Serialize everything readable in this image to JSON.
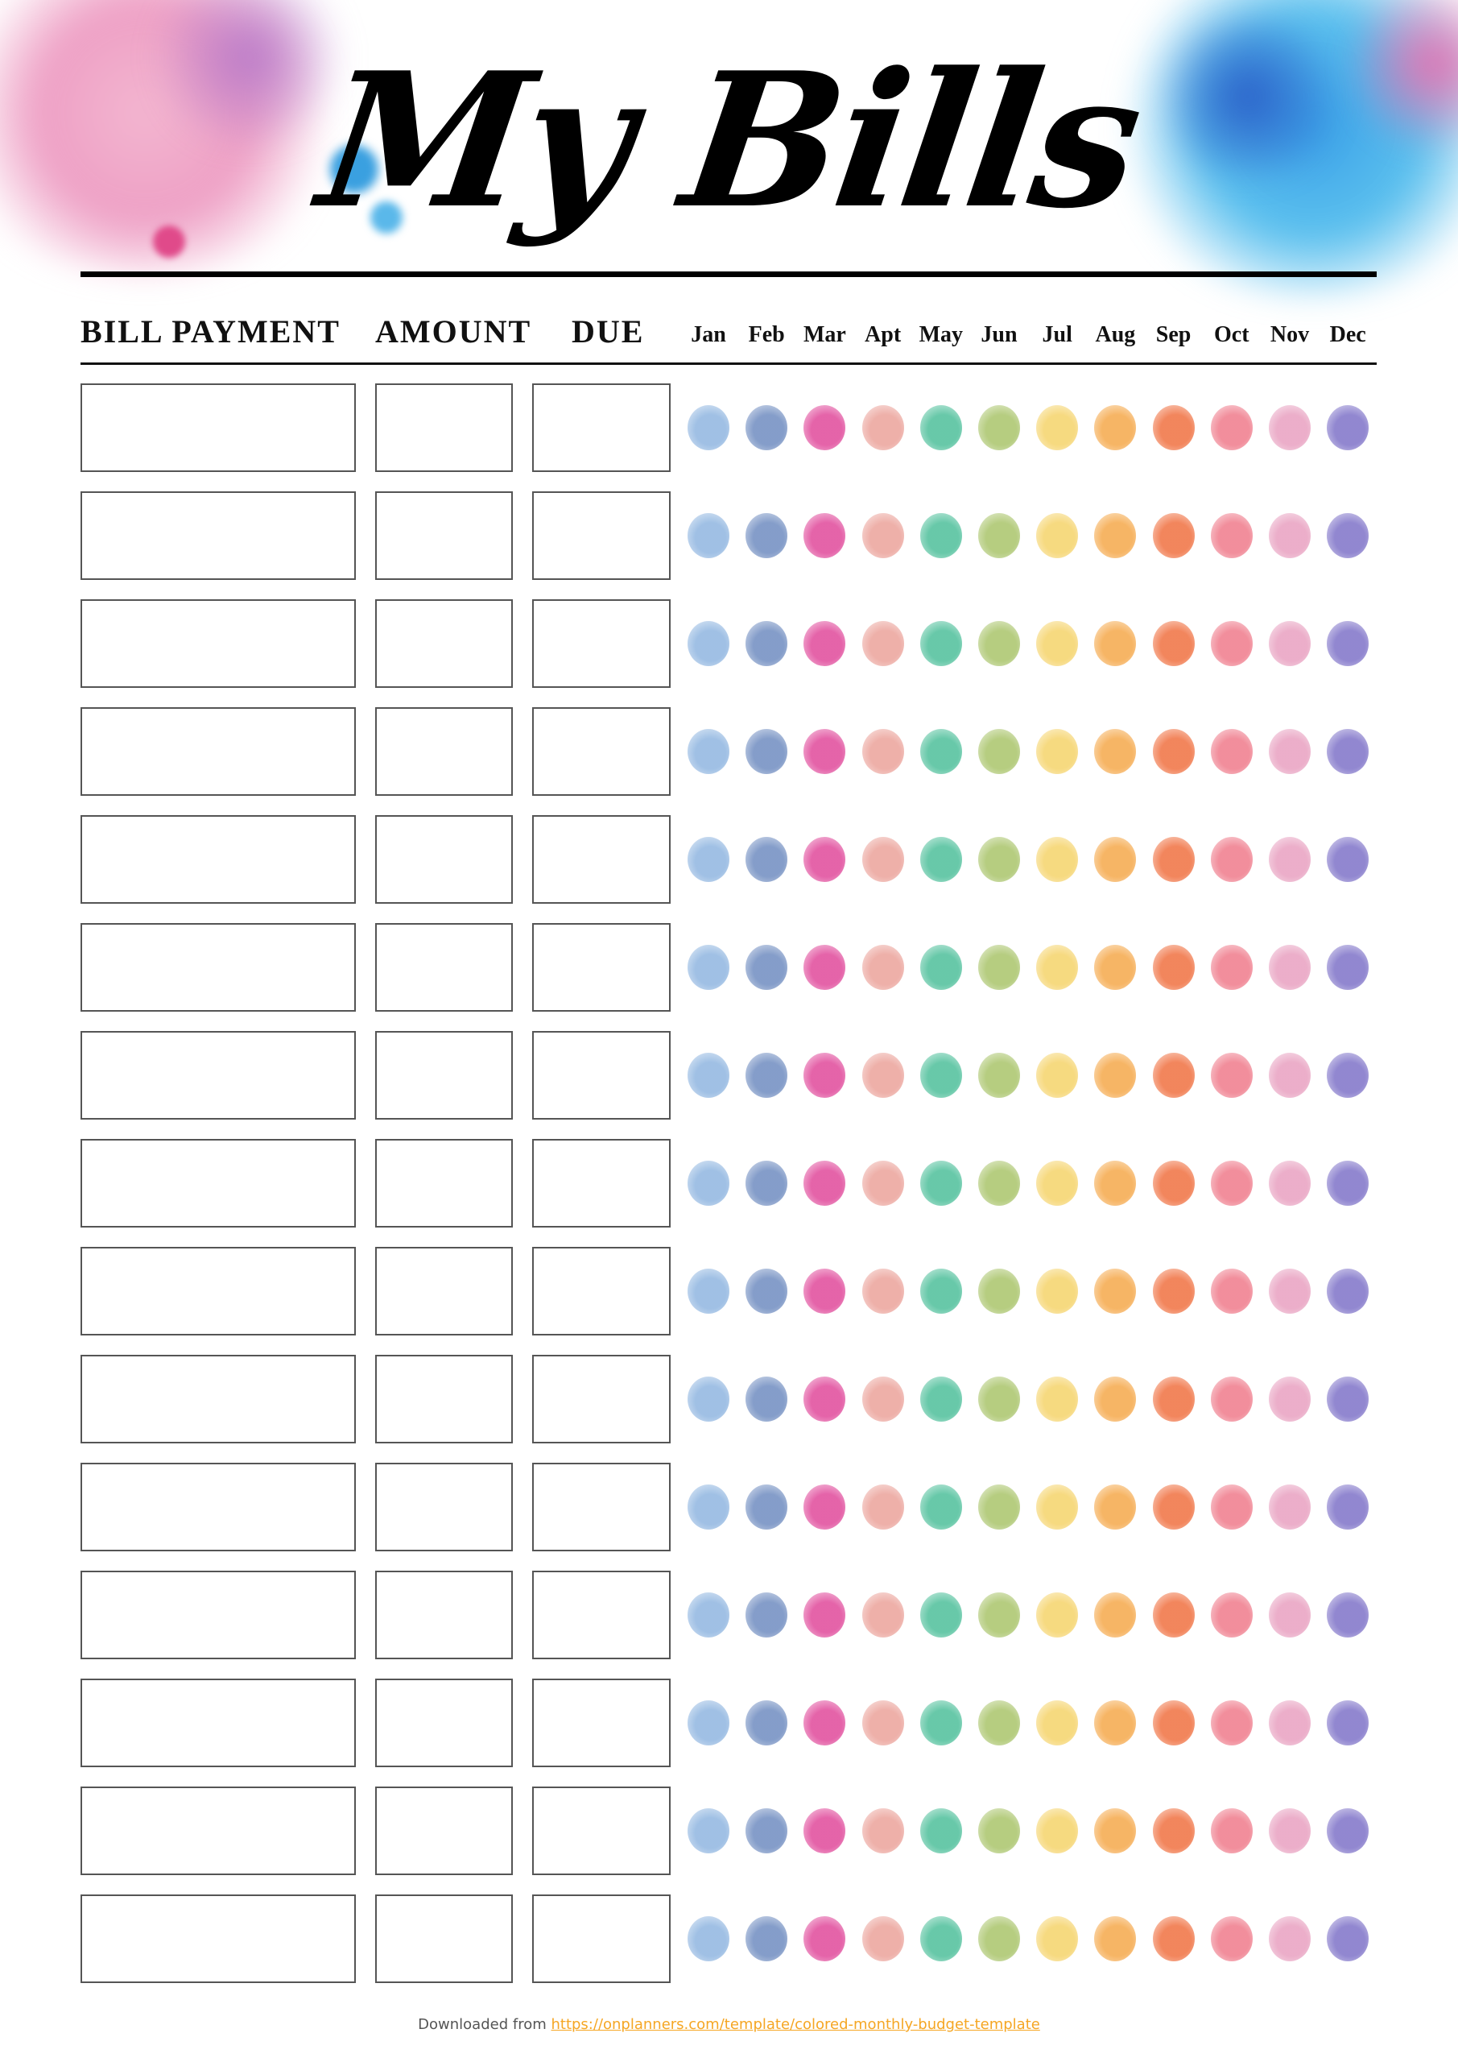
{
  "title": "My Bills",
  "headers": {
    "bill_payment": "BILL PAYMENT",
    "amount": "AMOUNT",
    "due": "DUE"
  },
  "months": [
    "Jan",
    "Feb",
    "Mar",
    "Apt",
    "May",
    "Jun",
    "Jul",
    "Aug",
    "Sep",
    "Oct",
    "Nov",
    "Dec"
  ],
  "month_colors": [
    "#8fb5e0",
    "#6f8cc0",
    "#e0489a",
    "#eba29a",
    "#4dbf9a",
    "#a9c46a",
    "#f5d36a",
    "#f5a84a",
    "#f07040",
    "#ef7a8a",
    "#e8a0c0",
    "#7e72c8"
  ],
  "footer": {
    "prefix": "Downloaded from",
    "link": "https://onplanners.com/template/colored-monthly-budget-template"
  },
  "accent_colors": {
    "pink_splash": "#e66fa6",
    "blue_splash": "#2f8fe0",
    "link": "#f5a623"
  }
}
